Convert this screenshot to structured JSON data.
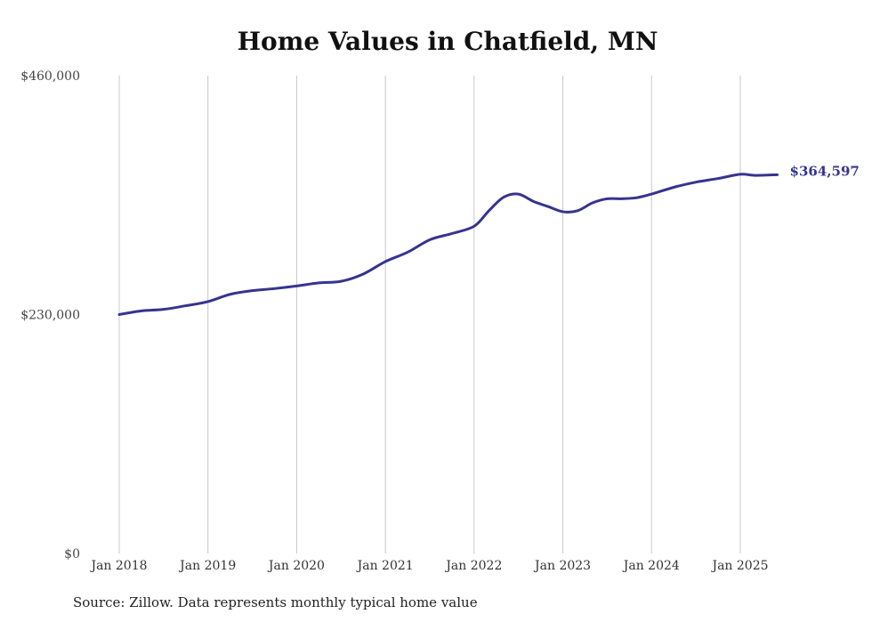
{
  "title": "Home Values in Chatfield, MN",
  "source": "Source: Zillow. Data represents monthly typical home value",
  "colors": {
    "line": "#36348f",
    "grid": "#c8c8c8",
    "end_label": "#36348f"
  },
  "chart_data": {
    "type": "line",
    "title": "Home Values in Chatfield, MN",
    "xlabel": "",
    "ylabel": "",
    "ylim": [
      0,
      460000
    ],
    "xlim": [
      "2018-01",
      "2025-06"
    ],
    "yticks": [
      0,
      230000,
      460000
    ],
    "yticklabels": [
      "$0",
      "$230,000",
      "$460,000"
    ],
    "xticks": [
      "2018-01",
      "2019-01",
      "2020-01",
      "2021-01",
      "2022-01",
      "2023-01",
      "2024-01",
      "2025-01"
    ],
    "xticklabels": [
      "Jan 2018",
      "Jan 2019",
      "Jan 2020",
      "Jan 2021",
      "Jan 2022",
      "Jan 2023",
      "Jan 2024",
      "Jan 2025"
    ],
    "grid": {
      "vertical": true,
      "horizontal": false
    },
    "end_label": "$364,597",
    "series": [
      {
        "x": [
          "2018-01",
          "2018-04",
          "2018-07",
          "2018-10",
          "2019-01",
          "2019-04",
          "2019-07",
          "2019-10",
          "2020-01",
          "2020-04",
          "2020-07",
          "2020-10",
          "2021-01",
          "2021-04",
          "2021-07",
          "2021-10",
          "2022-01",
          "2022-03",
          "2022-05",
          "2022-07",
          "2022-09",
          "2022-11",
          "2023-01",
          "2023-03",
          "2023-05",
          "2023-07",
          "2023-09",
          "2023-11",
          "2024-01",
          "2024-04",
          "2024-07",
          "2024-10",
          "2025-01",
          "2025-03",
          "2025-06"
        ],
        "values": [
          230000,
          233500,
          235000,
          238500,
          242500,
          249500,
          253000,
          255000,
          257500,
          260500,
          262000,
          269000,
          281000,
          290000,
          302000,
          308000,
          315000,
          330000,
          343000,
          346000,
          339000,
          334000,
          329000,
          330000,
          337500,
          341500,
          341500,
          342500,
          346000,
          352500,
          357500,
          361000,
          365000,
          364000,
          364597
        ]
      }
    ]
  }
}
